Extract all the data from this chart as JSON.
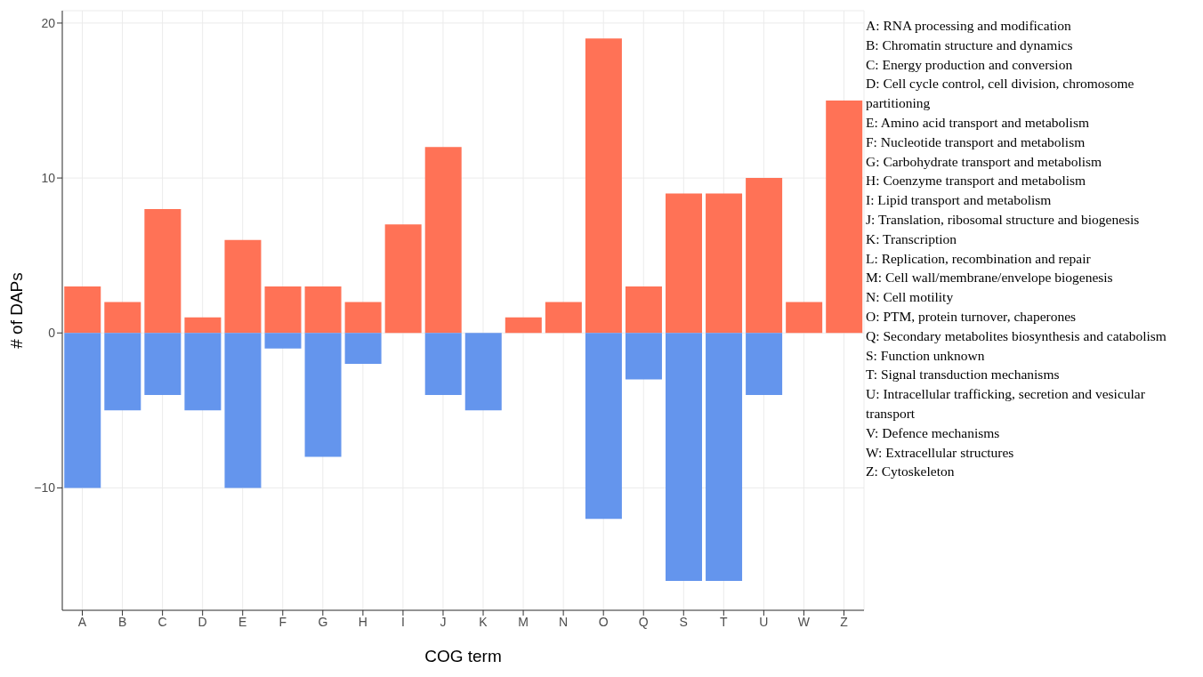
{
  "chart_data": {
    "type": "bar",
    "xlabel": "COG term",
    "ylabel": "# of DAPs",
    "categories": [
      "A",
      "B",
      "C",
      "D",
      "E",
      "F",
      "G",
      "H",
      "I",
      "J",
      "K",
      "M",
      "N",
      "O",
      "Q",
      "S",
      "T",
      "U",
      "W",
      "Z"
    ],
    "series": [
      {
        "color": "#ff7256",
        "values": [
          3,
          2,
          8,
          1,
          6,
          3,
          3,
          2,
          7,
          12,
          0,
          1,
          2,
          19,
          3,
          9,
          9,
          10,
          2,
          15
        ]
      },
      {
        "color": "#6495ed",
        "values": [
          -10,
          -5,
          -4,
          -5,
          -10,
          -1,
          -8,
          -2,
          0,
          -4,
          -5,
          0,
          0,
          -12,
          -3,
          -16,
          -16,
          -4,
          0,
          0
        ]
      }
    ],
    "stacked": true,
    "ylim": [
      -17.9,
      20.8
    ],
    "yticks": [
      -10,
      0,
      10,
      20
    ],
    "grid": true,
    "legend": false,
    "annotations": [
      "A: RNA processing and modification",
      "B: Chromatin structure and dynamics",
      "C: Energy production and conversion",
      "D: Cell cycle control, cell division, chromosome partitioning",
      "E: Amino acid transport and metabolism",
      "F: Nucleotide transport and metabolism",
      "G: Carbohydrate transport and metabolism",
      "H: Coenzyme transport and metabolism",
      "I: Lipid transport and metabolism",
      "J: Translation, ribosomal structure and biogenesis",
      "K: Transcription",
      "L: Replication, recombination and repair",
      "M: Cell wall/membrane/envelope biogenesis",
      "N: Cell motility",
      "O: PTM, protein turnover, chaperones",
      "Q: Secondary metabolites biosynthesis and catabolism",
      "S: Function unknown",
      "T: Signal transduction mechanisms",
      "U: Intracellular trafficking, secretion and vesicular transport",
      "V: Defence mechanisms",
      "W: Extracellular structures",
      "Z: Cytoskeleton"
    ]
  }
}
